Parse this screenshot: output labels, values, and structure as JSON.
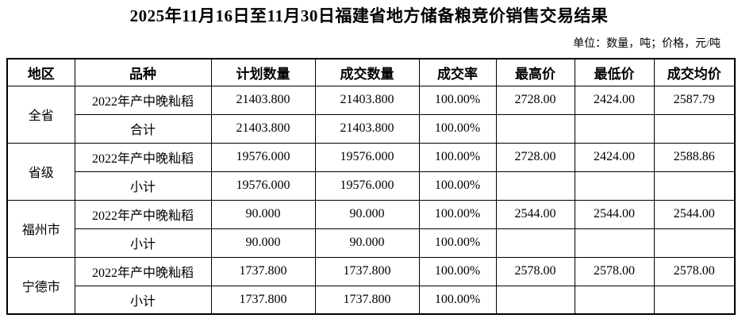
{
  "page": {
    "title": "2025年11月16日至11月30日福建省地方储备粮竞价销售交易结果",
    "unit_note": "单位：数量，吨；价格，元/吨"
  },
  "table": {
    "headers": [
      "地区",
      "品种",
      "计划数量",
      "成交数量",
      "成交率",
      "最高价",
      "最低价",
      "成交均价"
    ],
    "groups": [
      {
        "region": "全省",
        "rows": [
          {
            "variety": "2022年产中晚籼稻",
            "planned": "21403.800",
            "transacted": "21403.800",
            "rate": "100.00%",
            "high": "2728.00",
            "low": "2424.00",
            "avg": "2587.79"
          },
          {
            "variety": "合计",
            "planned": "21403.800",
            "transacted": "21403.800",
            "rate": "100.00%",
            "high": "",
            "low": "",
            "avg": ""
          }
        ]
      },
      {
        "region": "省级",
        "rows": [
          {
            "variety": "2022年产中晚籼稻",
            "planned": "19576.000",
            "transacted": "19576.000",
            "rate": "100.00%",
            "high": "2728.00",
            "low": "2424.00",
            "avg": "2588.86"
          },
          {
            "variety": "小计",
            "planned": "19576.000",
            "transacted": "19576.000",
            "rate": "100.00%",
            "high": "",
            "low": "",
            "avg": ""
          }
        ]
      },
      {
        "region": "福州市",
        "rows": [
          {
            "variety": "2022年产中晚籼稻",
            "planned": "90.000",
            "transacted": "90.000",
            "rate": "100.00%",
            "high": "2544.00",
            "low": "2544.00",
            "avg": "2544.00"
          },
          {
            "variety": "小计",
            "planned": "90.000",
            "transacted": "90.000",
            "rate": "100.00%",
            "high": "",
            "low": "",
            "avg": ""
          }
        ]
      },
      {
        "region": "宁德市",
        "rows": [
          {
            "variety": "2022年产中晚籼稻",
            "planned": "1737.800",
            "transacted": "1737.800",
            "rate": "100.00%",
            "high": "2578.00",
            "low": "2578.00",
            "avg": "2578.00"
          },
          {
            "variety": "小计",
            "planned": "1737.800",
            "transacted": "1737.800",
            "rate": "100.00%",
            "high": "",
            "low": "",
            "avg": ""
          }
        ]
      }
    ]
  }
}
